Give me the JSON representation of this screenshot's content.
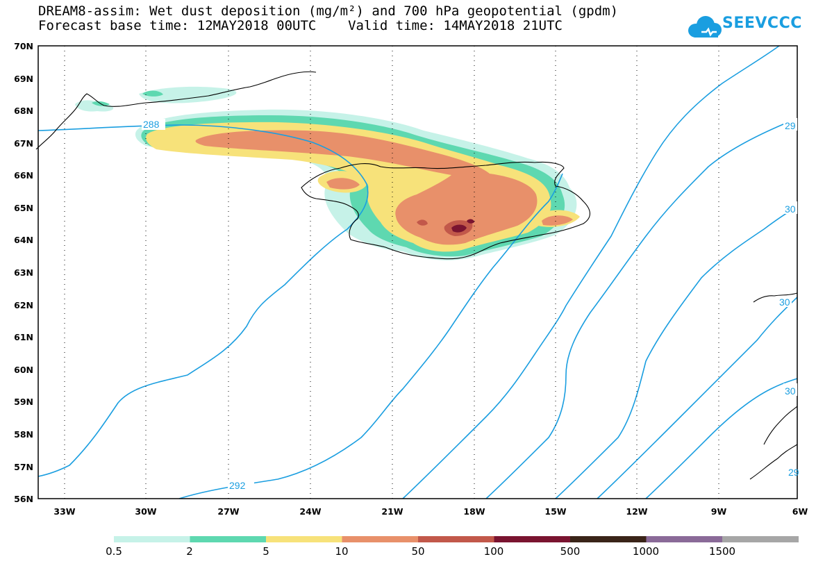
{
  "title": {
    "line1": "DREAM8-assim: Wet dust deposition (mg/m²) and 700 hPa geopotential (gpdm)",
    "line2": "Forecast base time: 12MAY2018 00UTC    Valid time: 14MAY2018 21UTC"
  },
  "logo": {
    "text": "SEEVCCC",
    "icon": "cloud-icon"
  },
  "map": {
    "lat_labels": [
      "70N",
      "69N",
      "68N",
      "67N",
      "66N",
      "65N",
      "64N",
      "63N",
      "62N",
      "61N",
      "60N",
      "59N",
      "58N",
      "57N",
      "56N"
    ],
    "lon_labels": [
      "33W",
      "30W",
      "27W",
      "24W",
      "21W",
      "18W",
      "15W",
      "12W",
      "9W",
      "6W"
    ],
    "contour_labels": [
      "288",
      "292",
      "29",
      "30",
      "30",
      "30",
      "29"
    ]
  },
  "legend": {
    "labels": [
      "0.5",
      "2",
      "5",
      "10",
      "50",
      "100",
      "500",
      "1000",
      "1500"
    ],
    "colors": [
      "#c6f2e8",
      "#5ed8b0",
      "#f7e27a",
      "#e8906a",
      "#c2584a",
      "#7a1430",
      "#3a2418",
      "#8a6a98",
      "#a6a6a6"
    ]
  },
  "colors": {
    "contour": "#1a9ee0",
    "coast": "#000000"
  }
}
